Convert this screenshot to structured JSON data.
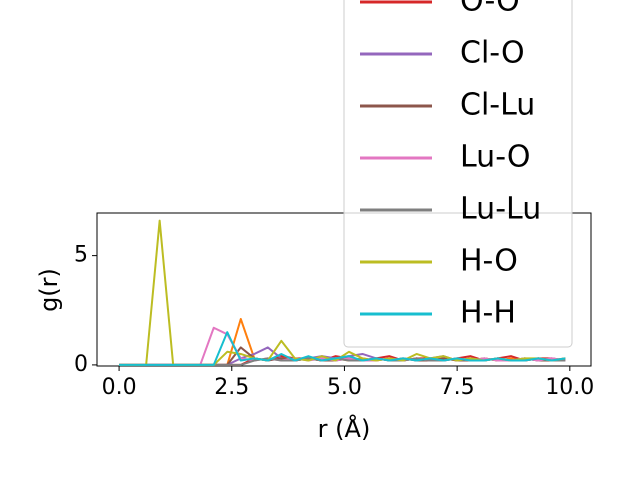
{
  "chart_data": {
    "type": "line",
    "xlabel": "r (Å)",
    "ylabel": "g(r)",
    "x": [
      0,
      0.3,
      0.6,
      0.9,
      1.2,
      1.5,
      1.8,
      2.1,
      2.4,
      2.7,
      3.0,
      3.3,
      3.6,
      3.9,
      4.2,
      4.5,
      4.8,
      5.1,
      5.4,
      5.7,
      6.0,
      6.3,
      6.6,
      6.9,
      7.2,
      7.5,
      7.8,
      8.1,
      8.4,
      8.7,
      9.0,
      9.3,
      9.6,
      9.9
    ],
    "series": [
      {
        "color": "#ff7f0e",
        "values": [
          0,
          0,
          0,
          0,
          0,
          0,
          0,
          0,
          0,
          2.1,
          0.3,
          0.2,
          0.4,
          0.2,
          0.3,
          0.2,
          0.3,
          0.2,
          0.3,
          0.2,
          0.3,
          0.2,
          0.3,
          0.2,
          0.3,
          0.2,
          0.2,
          0.3,
          0.2,
          0.3,
          0.2,
          0.3,
          0.2,
          0.3
        ]
      },
      {
        "name": "O-O",
        "color": "#d62728",
        "values": [
          0,
          0,
          0,
          0,
          0,
          0,
          0,
          0,
          0,
          0,
          0.3,
          0.2,
          0.4,
          0.3,
          0.3,
          0.2,
          0.4,
          0.3,
          0.2,
          0.3,
          0.4,
          0.2,
          0.3,
          0.3,
          0.2,
          0.3,
          0.4,
          0.2,
          0.3,
          0.4,
          0.2,
          0.3,
          0.3,
          0.2
        ]
      },
      {
        "name": "Cl-O",
        "color": "#9467bd",
        "values": [
          0,
          0,
          0,
          0,
          0,
          0,
          0,
          0,
          0,
          0.3,
          0.5,
          0.8,
          0.3,
          0.2,
          0.3,
          0.4,
          0.3,
          0.4,
          0.5,
          0.3,
          0.2,
          0.3,
          0.2,
          0.3,
          0.4,
          0.2,
          0.3,
          0.2,
          0.3,
          0.2,
          0.3,
          0.2,
          0.3,
          0.2
        ]
      },
      {
        "name": "Cl-Lu",
        "color": "#8c564b",
        "values": [
          0,
          0,
          0,
          0,
          0,
          0,
          0,
          0,
          0,
          0.8,
          0.3,
          0.2,
          0.3,
          0.2,
          0.3,
          0.2,
          0.2,
          0.3,
          0.2,
          0.3,
          0.2,
          0.3,
          0.2,
          0.2,
          0.3,
          0.2,
          0.2,
          0.3,
          0.2,
          0.2,
          0.3,
          0.2,
          0.2,
          0.3
        ]
      },
      {
        "name": "Lu-O",
        "color": "#e377c2",
        "values": [
          0,
          0,
          0,
          0,
          0,
          0,
          0,
          1.7,
          1.4,
          0.3,
          0.2,
          0.3,
          0.2,
          0.3,
          0.2,
          0.3,
          0.2,
          0.3,
          0.2,
          0.2,
          0.3,
          0.2,
          0.3,
          0.2,
          0.2,
          0.3,
          0.2,
          0.3,
          0.2,
          0.2,
          0.3,
          0.2,
          0.3,
          0.2
        ]
      },
      {
        "name": "Lu-Lu",
        "color": "#7f7f7f",
        "values": [
          0,
          0,
          0,
          0,
          0,
          0,
          0,
          0,
          0,
          0,
          0.2,
          0.3,
          0.2,
          0.2,
          0.3,
          0.2,
          0.3,
          0.2,
          0.2,
          0.3,
          0.2,
          0.2,
          0.3,
          0.2,
          0.2,
          0.3,
          0.2,
          0.2,
          0.3,
          0.2,
          0.2,
          0.3,
          0.2,
          0.2
        ]
      },
      {
        "name": "H-O",
        "color": "#bcbd22",
        "values": [
          0,
          0,
          0,
          6.6,
          0,
          0,
          0,
          0,
          0.6,
          0.5,
          0.3,
          0.2,
          1.1,
          0.3,
          0.2,
          0.4,
          0.2,
          0.6,
          0.3,
          0.2,
          0.3,
          0.2,
          0.5,
          0.3,
          0.4,
          0.2,
          0.3,
          0.2,
          0.3,
          0.2,
          0.3,
          0.3,
          0.2,
          0.3
        ]
      },
      {
        "name": "H-H",
        "color": "#17becf",
        "values": [
          0,
          0,
          0,
          0,
          0,
          0,
          0,
          0,
          1.5,
          0.2,
          0.3,
          0.2,
          0.5,
          0.2,
          0.4,
          0.2,
          0.3,
          0.4,
          0.2,
          0.3,
          0.2,
          0.3,
          0.2,
          0.3,
          0.2,
          0.3,
          0.2,
          0.2,
          0.3,
          0.2,
          0.2,
          0.3,
          0.2,
          0.3
        ]
      }
    ],
    "xlim": [
      -0.49,
      10.47
    ],
    "ylim": [
      -0.05,
      6.95
    ],
    "xticks": [
      {
        "value": 0,
        "label": "0.0"
      },
      {
        "value": 2.5,
        "label": "2.5"
      },
      {
        "value": 5,
        "label": "5.0"
      },
      {
        "value": 7.5,
        "label": "7.5"
      },
      {
        "value": 10,
        "label": "10.0"
      }
    ],
    "yticks": [
      0,
      5
    ],
    "legend": "upper right"
  }
}
